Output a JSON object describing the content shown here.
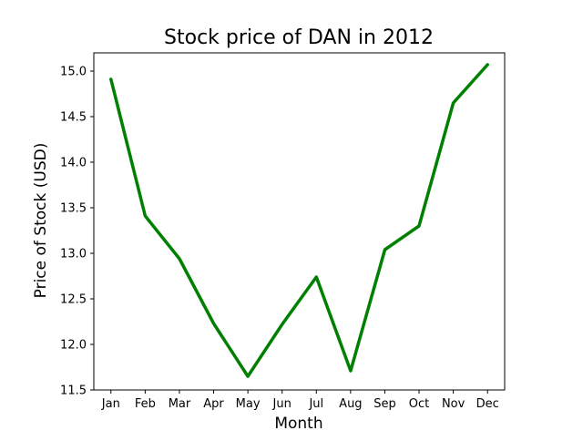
{
  "chart_data": {
    "type": "line",
    "title": "Stock price of DAN in 2012",
    "xlabel": "Month",
    "ylabel": "Price of Stock (USD)",
    "categories": [
      "Jan",
      "Feb",
      "Mar",
      "Apr",
      "May",
      "Jun",
      "Jul",
      "Aug",
      "Sep",
      "Oct",
      "Nov",
      "Dec"
    ],
    "series": [
      {
        "values": [
          14.91,
          13.41,
          12.94,
          12.23,
          11.65,
          12.22,
          12.74,
          11.71,
          13.04,
          13.3,
          14.65,
          15.07
        ],
        "color": "#008000"
      }
    ],
    "ylim": [
      11.5,
      15.2
    ],
    "yticks": [
      "11.5",
      "12.0",
      "12.5",
      "13.0",
      "13.5",
      "14.0",
      "14.5",
      "15.0"
    ],
    "grid": false,
    "legend": false
  }
}
